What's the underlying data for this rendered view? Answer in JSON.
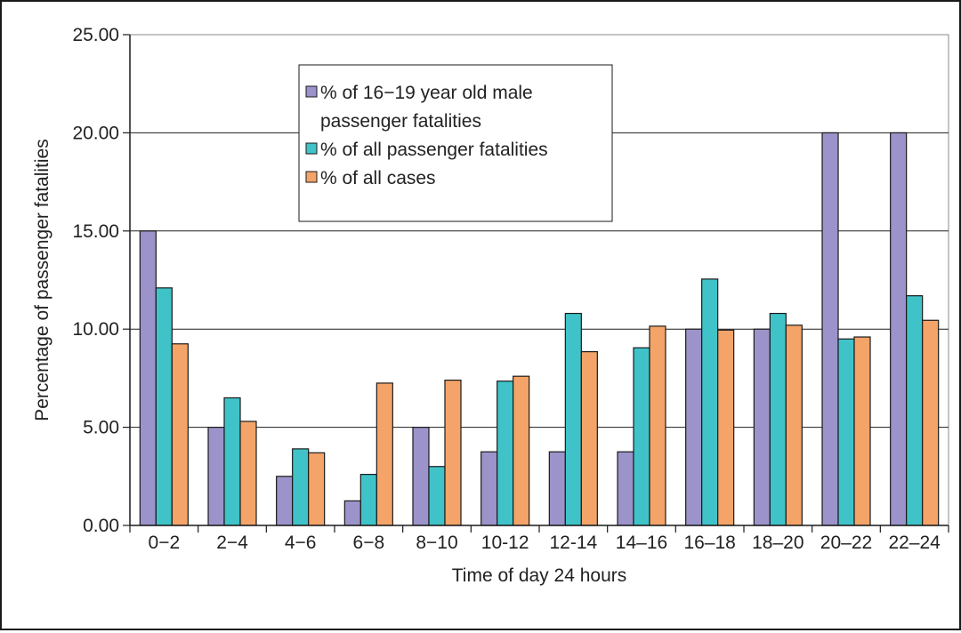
{
  "chart_data": {
    "type": "bar",
    "xlabel": "Time of day 24 hours",
    "ylabel": "Percentage of passenger fatalities",
    "ylim": [
      0,
      25
    ],
    "yticks": [
      "0.00",
      "5.00",
      "10.00",
      "15.00",
      "20.00",
      "25.00"
    ],
    "grid": true,
    "legend_position": "top-center",
    "categories": [
      "0−2",
      "2−4",
      "4−6",
      "6−8",
      "8−10",
      "10-12",
      "12-14",
      "14–16",
      "16–18",
      "18–20",
      "20–22",
      "22–24"
    ],
    "series": [
      {
        "name": "% of 16−19 year old male passenger fatalities",
        "legend_lines": [
          "% of 16−19 year old male",
          "passenger fatalities"
        ],
        "color": "#9b93c9",
        "values": [
          15.0,
          5.0,
          2.5,
          1.25,
          5.0,
          3.75,
          3.75,
          3.75,
          10.0,
          10.0,
          20.0,
          20.0
        ]
      },
      {
        "name": "% of all passenger fatalities",
        "legend_lines": [
          "% of all passenger fatalities"
        ],
        "color": "#3fc3c8",
        "values": [
          12.1,
          6.5,
          3.9,
          2.6,
          3.0,
          7.35,
          10.8,
          9.05,
          12.55,
          10.8,
          9.5,
          11.7
        ]
      },
      {
        "name": "% of all cases",
        "legend_lines": [
          "% of all cases"
        ],
        "color": "#f4a468",
        "values": [
          9.25,
          5.3,
          3.7,
          7.25,
          7.4,
          7.6,
          8.85,
          10.15,
          9.95,
          10.2,
          9.6,
          10.45
        ]
      }
    ]
  }
}
